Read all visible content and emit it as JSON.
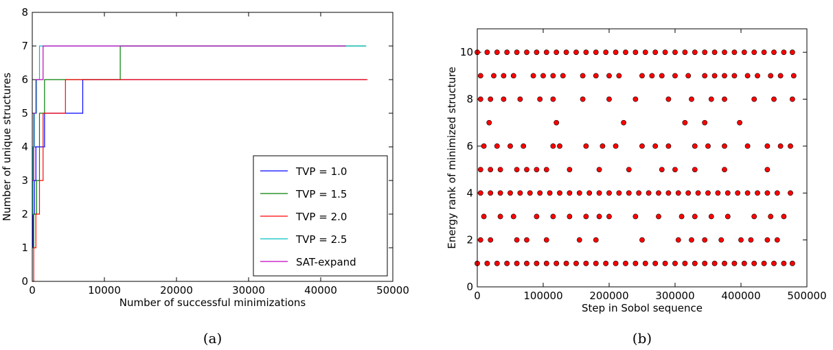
{
  "chart_data": [
    {
      "type": "line",
      "drawstyle": "steps-post",
      "caption": "(a)",
      "xlabel": "Number of successful minimizations",
      "ylabel": "Number of unique structures",
      "xlim": [
        0,
        50000
      ],
      "ylim": [
        0,
        8
      ],
      "xticks": [
        0,
        10000,
        20000,
        30000,
        40000,
        50000
      ],
      "yticks": [
        0,
        1,
        2,
        3,
        4,
        5,
        6,
        7,
        8
      ],
      "grid": false,
      "legend": "lower right",
      "series": [
        {
          "name": "TVP = 1.0",
          "color": "#0000ff",
          "x": [
            0,
            100,
            300,
            500,
            1700,
            7000,
            46300
          ],
          "values": [
            1,
            2,
            3,
            4,
            5,
            6,
            6
          ]
        },
        {
          "name": "TVP = 1.5",
          "color": "#007f00",
          "x": [
            0,
            200,
            600,
            1000,
            1700,
            12200,
            46300
          ],
          "values": [
            1,
            2,
            3,
            5,
            6,
            7,
            7
          ]
        },
        {
          "name": "TVP = 2.0",
          "color": "#ff0000",
          "x": [
            0,
            200,
            500,
            1000,
            1500,
            4600,
            46500
          ],
          "values": [
            0,
            1,
            2,
            3,
            5,
            6,
            6
          ]
        },
        {
          "name": "TVP = 2.5",
          "color": "#00bfbf",
          "x": [
            0,
            100,
            300,
            600,
            1000,
            46300
          ],
          "values": [
            2,
            4,
            5,
            6,
            7,
            7
          ]
        },
        {
          "name": "SAT-expand",
          "color": "#bf00bf",
          "x": [
            0,
            200,
            500,
            1500,
            43500
          ],
          "values": [
            3,
            5,
            6,
            7,
            7
          ]
        }
      ]
    },
    {
      "type": "scatter",
      "caption": "(b)",
      "xlabel": "Step in Sobol sequence",
      "ylabel": "Energy rank of minimized structure",
      "xlim": [
        0,
        500000
      ],
      "ylim": [
        0,
        11
      ],
      "xticks": [
        0,
        100000,
        200000,
        300000,
        400000,
        500000
      ],
      "yticks": [
        0,
        2,
        4,
        6,
        8,
        10
      ],
      "grid": false,
      "color": "#ff0000",
      "x": [
        0,
        15000,
        30000,
        45000,
        60000,
        75000,
        90000,
        105000,
        120000,
        135000,
        150000,
        165000,
        180000,
        195000,
        210000,
        225000,
        240000,
        255000,
        270000,
        285000,
        300000,
        315000,
        330000,
        345000,
        360000,
        375000,
        390000,
        405000,
        420000,
        435000,
        450000,
        465000,
        478000,
        5000,
        25000,
        40000,
        55000,
        85000,
        100000,
        115000,
        130000,
        160000,
        180000,
        200000,
        215000,
        250000,
        265000,
        280000,
        300000,
        320000,
        345000,
        360000,
        375000,
        390000,
        410000,
        425000,
        445000,
        460000,
        480000,
        5000,
        20000,
        40000,
        65000,
        95000,
        115000,
        160000,
        200000,
        240000,
        290000,
        325000,
        355000,
        375000,
        420000,
        450000,
        478000,
        18000,
        120000,
        222000,
        315000,
        345000,
        398000,
        10000,
        30000,
        50000,
        70000,
        115000,
        125000,
        165000,
        190000,
        210000,
        250000,
        270000,
        290000,
        330000,
        350000,
        375000,
        410000,
        440000,
        460000,
        475000,
        5000,
        20000,
        35000,
        60000,
        75000,
        90000,
        105000,
        140000,
        185000,
        230000,
        280000,
        300000,
        330000,
        375000,
        440000,
        5000,
        20000,
        35000,
        50000,
        65000,
        80000,
        95000,
        110000,
        125000,
        140000,
        155000,
        170000,
        185000,
        200000,
        215000,
        230000,
        245000,
        260000,
        275000,
        290000,
        305000,
        320000,
        335000,
        350000,
        365000,
        380000,
        395000,
        410000,
        425000,
        440000,
        455000,
        475000,
        10000,
        35000,
        55000,
        90000,
        115000,
        140000,
        165000,
        185000,
        200000,
        240000,
        275000,
        310000,
        330000,
        355000,
        380000,
        420000,
        445000,
        465000,
        5000,
        20000,
        60000,
        75000,
        105000,
        155000,
        180000,
        250000,
        305000,
        325000,
        345000,
        370000,
        400000,
        415000,
        440000,
        455000,
        0,
        15000,
        30000,
        45000,
        60000,
        75000,
        90000,
        105000,
        120000,
        135000,
        150000,
        165000,
        180000,
        195000,
        210000,
        225000,
        240000,
        255000,
        270000,
        285000,
        300000,
        315000,
        330000,
        345000,
        360000,
        375000,
        390000,
        405000,
        420000,
        435000,
        450000,
        465000,
        478000
      ],
      "values": [
        10,
        10,
        10,
        10,
        10,
        10,
        10,
        10,
        10,
        10,
        10,
        10,
        10,
        10,
        10,
        10,
        10,
        10,
        10,
        10,
        10,
        10,
        10,
        10,
        10,
        10,
        10,
        10,
        10,
        10,
        10,
        10,
        10,
        9,
        9,
        9,
        9,
        9,
        9,
        9,
        9,
        9,
        9,
        9,
        9,
        9,
        9,
        9,
        9,
        9,
        9,
        9,
        9,
        9,
        9,
        9,
        9,
        9,
        9,
        8,
        8,
        8,
        8,
        8,
        8,
        8,
        8,
        8,
        8,
        8,
        8,
        8,
        8,
        8,
        8,
        7,
        7,
        7,
        7,
        7,
        7,
        6,
        6,
        6,
        6,
        6,
        6,
        6,
        6,
        6,
        6,
        6,
        6,
        6,
        6,
        6,
        6,
        6,
        6,
        6,
        5,
        5,
        5,
        5,
        5,
        5,
        5,
        5,
        5,
        5,
        5,
        5,
        5,
        5,
        5,
        4,
        4,
        4,
        4,
        4,
        4,
        4,
        4,
        4,
        4,
        4,
        4,
        4,
        4,
        4,
        4,
        4,
        4,
        4,
        4,
        4,
        4,
        4,
        4,
        4,
        4,
        4,
        4,
        4,
        4,
        4,
        4,
        3,
        3,
        3,
        3,
        3,
        3,
        3,
        3,
        3,
        3,
        3,
        3,
        3,
        3,
        3,
        3,
        3,
        3,
        2,
        2,
        2,
        2,
        2,
        2,
        2,
        2,
        2,
        2,
        2,
        2,
        2,
        2,
        2,
        2,
        1,
        1,
        1,
        1,
        1,
        1,
        1,
        1,
        1,
        1,
        1,
        1,
        1,
        1,
        1,
        1,
        1,
        1,
        1,
        1,
        1,
        1,
        1,
        1,
        1,
        1,
        1,
        1,
        1,
        1,
        1,
        1,
        1
      ]
    }
  ]
}
